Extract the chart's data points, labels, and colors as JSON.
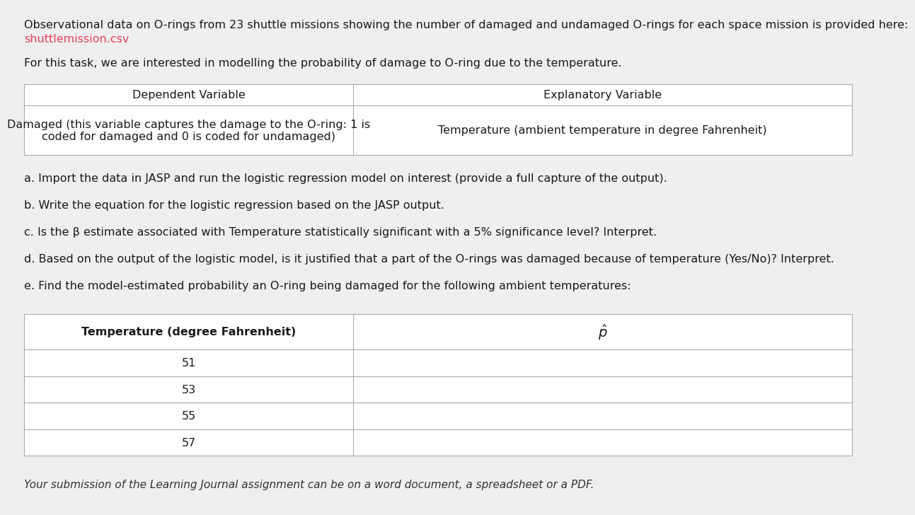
{
  "bg_color": "#efefef",
  "text_color": "#1a1a1a",
  "link_color": "#e8405a",
  "line1": "Observational data on O-rings from 23 shuttle missions showing the number of damaged and undamaged O-rings for each space mission is provided here:",
  "link_text": "shuttlemission.csv",
  "line2": "For this task, we are interested in modelling the probability of damage to O-ring due to the temperature.",
  "table1_headers": [
    "Dependent Variable",
    "Explanatory Variable"
  ],
  "table1_row1_col1_line1": "Damaged (this variable captures the damage to the O-ring: 1 is",
  "table1_row1_col1_line2": "coded for damaged and 0 is coded for undamaged)",
  "table1_row1_col2": "Temperature (ambient temperature in degree Fahrenheit)",
  "task_a": "a. Import the data in JASP and run the logistic regression model on interest (provide a full capture of the output).",
  "task_b": "b. Write the equation for the logistic regression based on the JASP output.",
  "task_c": "c. Is the β estimate associated with Temperature statistically significant with a 5% significance level? Interpret.",
  "task_d": "d. Based on the output of the logistic model, is it justified that a part of the O-rings was damaged because of temperature (Yes/No)? Interpret.",
  "task_e": "e. Find the model-estimated probability an O-ring being damaged for the following ambient temperatures:",
  "table2_col1_header": "Temperature (degree Fahrenheit)",
  "table2_col2_header": "p_hat",
  "table2_rows": [
    "51",
    "53",
    "55",
    "57"
  ],
  "footer": "Your submission of the Learning Journal assignment can be on a word document, a spreadsheet or a PDF.",
  "fontsize": 11.5,
  "table_border_color": "#aaaaaa",
  "table_bg": "#ffffff"
}
